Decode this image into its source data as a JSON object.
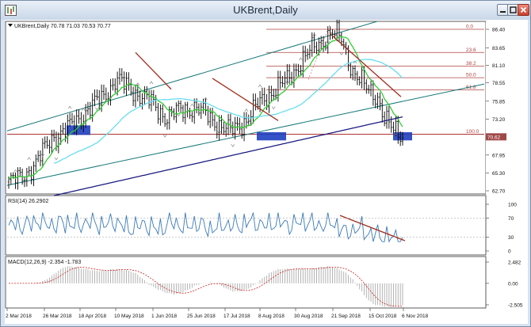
{
  "window": {
    "title": "UKBrent,Daily",
    "icons": {
      "app": "chart-app-icon",
      "minimize": "minimize-icon",
      "maximize": "maximize-icon",
      "close": "close-icon"
    }
  },
  "price_panel": {
    "header": "UKBrent,Daily  70.78 71.03 70.53 70.77",
    "last_price_label": "70.62",
    "y_ticks": [
      "86.40",
      "83.65",
      "81.10",
      "78.55",
      "75.85",
      "73.20",
      "70.60",
      "67.95",
      "65.30",
      "62.70"
    ],
    "fib_levels": [
      {
        "label": "0.0",
        "value": 86.4
      },
      {
        "label": "23.6",
        "value": 83.0
      },
      {
        "label": "38.2",
        "value": 81.0
      },
      {
        "label": "50.0",
        "value": 79.3
      },
      {
        "label": "61.8",
        "value": 77.5
      },
      {
        "label": "100.0",
        "value": 71.0
      }
    ]
  },
  "rsi_panel": {
    "header": "RSI(14) 26.2902",
    "y_ticks": [
      "100",
      "70",
      "30",
      "0"
    ]
  },
  "macd_panel": {
    "header": "MACD(12,26,9) -2.354 -1.783",
    "y_ticks": [
      "2.482",
      "0.00",
      "-2.505"
    ]
  },
  "x_axis": [
    "2 Mar 2018",
    "26 Mar 2018",
    "18 Apr 2018",
    "10 May 2018",
    "1 Jun 2018",
    "25 Jun 2018",
    "17 Jul 2018",
    "8 Aug 2018",
    "30 Aug 2018",
    "21 Sep 2018",
    "15 Oct 2018",
    "6 Nov 2018"
  ],
  "colors": {
    "fast_ma": "#33cc33",
    "mid_ma": "#66ddee",
    "slow_ma": "#1a1a80",
    "channel": "#1a7a7a",
    "trend": "#a03020",
    "fib": "#b04040",
    "rsi": "#3a7ab8",
    "macd_signal": "#cc2222",
    "highlight": "#1f3fc0"
  }
}
